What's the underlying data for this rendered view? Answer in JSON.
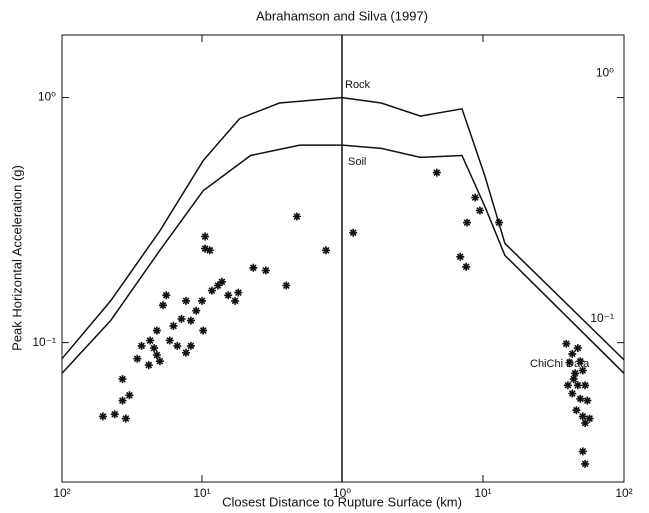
{
  "chart_data": {
    "type": "scatter",
    "title": "Abrahamson and Silva (1997)",
    "x_label": "Closest Distance to Rupture Surface (km)",
    "y_label": "Peak Horizontal Acceleration (g)",
    "log_y": true,
    "log_x": true,
    "grid": false,
    "ylim": [
      0.027,
      1.8
    ],
    "yticks": [
      {
        "value": 0.1,
        "label": "10⁻¹"
      },
      {
        "value": 1,
        "label": "10⁰"
      }
    ],
    "annotations": [
      "Rock",
      "Soil",
      "ChiChi Data"
    ],
    "panels": [
      {
        "xlim": [
          100,
          1
        ],
        "xticks": [
          {
            "value": 100,
            "label": "10²"
          },
          {
            "value": 10,
            "label": "10¹"
          },
          {
            "value": 1,
            "label": "10⁰"
          }
        ],
        "series": [
          {
            "mode": "line",
            "color": "#111111",
            "x": [
              100,
              45,
              20,
              9.8,
              5.4,
              2.8,
              1
            ],
            "values": [
              0.086,
              0.148,
              0.286,
              0.553,
              0.82,
              0.95,
              1.0
            ]
          },
          {
            "mode": "line",
            "color": "#111111",
            "x": [
              100,
              45,
              20,
              9.8,
              4.5,
              2,
              1
            ],
            "values": [
              0.075,
              0.123,
              0.238,
              0.417,
              0.58,
              0.64,
              0.64
            ]
          },
          {
            "mode": "markers",
            "color": "#111111",
            "x": [
              51,
              42,
              37,
              35,
              37,
              33,
              29,
              27,
              24,
              23.5,
              22,
              21,
              21,
              20,
              19,
              18,
              17,
              16,
              15,
              14,
              13,
              13,
              12,
              12,
              11,
              10,
              9.8,
              9.5,
              9.5,
              8.8,
              8.5,
              7.7,
              7.2,
              6.5,
              5.8,
              5.5,
              4.3,
              3.5,
              2.5,
              2.1,
              1.3
            ],
            "values": [
              0.05,
              0.051,
              0.058,
              0.049,
              0.071,
              0.061,
              0.086,
              0.097,
              0.081,
              0.102,
              0.095,
              0.089,
              0.112,
              0.084,
              0.142,
              0.156,
              0.102,
              0.117,
              0.097,
              0.125,
              0.148,
              0.091,
              0.123,
              0.097,
              0.135,
              0.148,
              0.112,
              0.271,
              0.242,
              0.238,
              0.163,
              0.171,
              0.177,
              0.156,
              0.148,
              0.16,
              0.202,
              0.197,
              0.171,
              0.327,
              0.238
            ]
          }
        ]
      },
      {
        "xlim": [
          1,
          100
        ],
        "xticks": [
          {
            "value": 10,
            "label": "10¹"
          },
          {
            "value": 100,
            "label": "10²"
          }
        ],
        "series": [
          {
            "mode": "line",
            "color": "#111111",
            "x": [
              1,
              1.9,
              3.6,
              7.1,
              10.3,
              14.3,
              100
            ],
            "values": [
              1.0,
              0.95,
              0.84,
              0.9,
              0.48,
              0.254,
              0.085
            ]
          },
          {
            "mode": "line",
            "color": "#111111",
            "x": [
              1,
              1.9,
              3.6,
              7.1,
              10.3,
              14.3,
              100
            ],
            "values": [
              0.64,
              0.62,
              0.57,
              0.58,
              0.36,
              0.227,
              0.075
            ]
          },
          {
            "mode": "markers",
            "color": "#111111",
            "x": [
              1.2,
              4.7,
              8.8,
              9.5,
              7.7,
              6.9,
              7.6,
              13,
              39,
              43,
              47,
              49,
              41,
              45,
              51,
              40,
              47,
              53,
              43,
              49,
              55,
              46,
              51,
              57,
              53,
              51,
              53,
              44
            ],
            "values": [
              0.281,
              0.494,
              0.391,
              0.346,
              0.309,
              0.224,
              0.204,
              0.309,
              0.099,
              0.09,
              0.095,
              0.084,
              0.083,
              0.075,
              0.077,
              0.067,
              0.067,
              0.067,
              0.062,
              0.059,
              0.058,
              0.053,
              0.05,
              0.049,
              0.047,
              0.036,
              0.032,
              0.071
            ]
          }
        ]
      }
    ]
  }
}
